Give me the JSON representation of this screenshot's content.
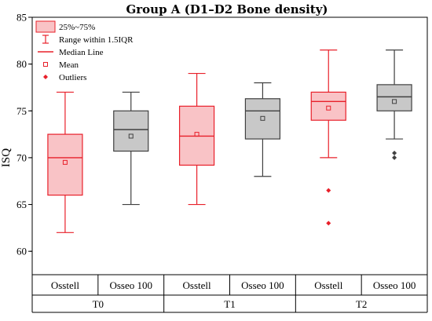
{
  "chart_data": {
    "type": "box",
    "title": "Group A (D1–D2 Bone density)",
    "ylabel": "ISQ",
    "xlabel": "",
    "ylim": [
      57.5,
      85
    ],
    "yticks": [
      60,
      65,
      70,
      75,
      80,
      85
    ],
    "grid": false,
    "legend_position": "top-left",
    "legend": [
      {
        "key": "box",
        "label": "25%~75%"
      },
      {
        "key": "whisker",
        "label": "Range within 1.5IQR"
      },
      {
        "key": "median",
        "label": "Median Line"
      },
      {
        "key": "mean",
        "label": "Mean"
      },
      {
        "key": "outlier",
        "label": "Outliers"
      }
    ],
    "groups": [
      "T0",
      "T1",
      "T2"
    ],
    "devices": [
      "Osstell",
      "Osseo 100"
    ],
    "colors": {
      "Osstell": {
        "fill": "#f9c3c6",
        "stroke": "#e8202a",
        "mean": "#e8202a",
        "outlier": "#e8202a"
      },
      "Osseo 100": {
        "fill": "#c8c8c8",
        "stroke": "#404040",
        "mean": "#404040",
        "outlier": "#404040"
      }
    },
    "boxes": [
      {
        "group": "T0",
        "device": "Osstell",
        "min": 62,
        "q1": 66,
        "median": 70,
        "q3": 72.5,
        "max": 77,
        "mean": 69.5,
        "outliers": []
      },
      {
        "group": "T0",
        "device": "Osseo 100",
        "min": 65,
        "q1": 70.7,
        "median": 73,
        "q3": 75,
        "max": 77,
        "mean": 72.3,
        "outliers": []
      },
      {
        "group": "T1",
        "device": "Osstell",
        "min": 65,
        "q1": 69.2,
        "median": 72.3,
        "q3": 75.5,
        "max": 79,
        "mean": 72.5,
        "outliers": []
      },
      {
        "group": "T1",
        "device": "Osseo 100",
        "min": 68,
        "q1": 72,
        "median": 75,
        "q3": 76.3,
        "max": 78,
        "mean": 74.2,
        "outliers": []
      },
      {
        "group": "T2",
        "device": "Osstell",
        "min": 70,
        "q1": 74,
        "median": 76,
        "q3": 77,
        "max": 81.5,
        "mean": 75.3,
        "outliers": [
          66.5,
          63
        ]
      },
      {
        "group": "T2",
        "device": "Osseo 100",
        "min": 72,
        "q1": 75,
        "median": 76.5,
        "q3": 77.8,
        "max": 81.5,
        "mean": 76,
        "outliers": [
          70.5,
          70
        ]
      }
    ]
  }
}
